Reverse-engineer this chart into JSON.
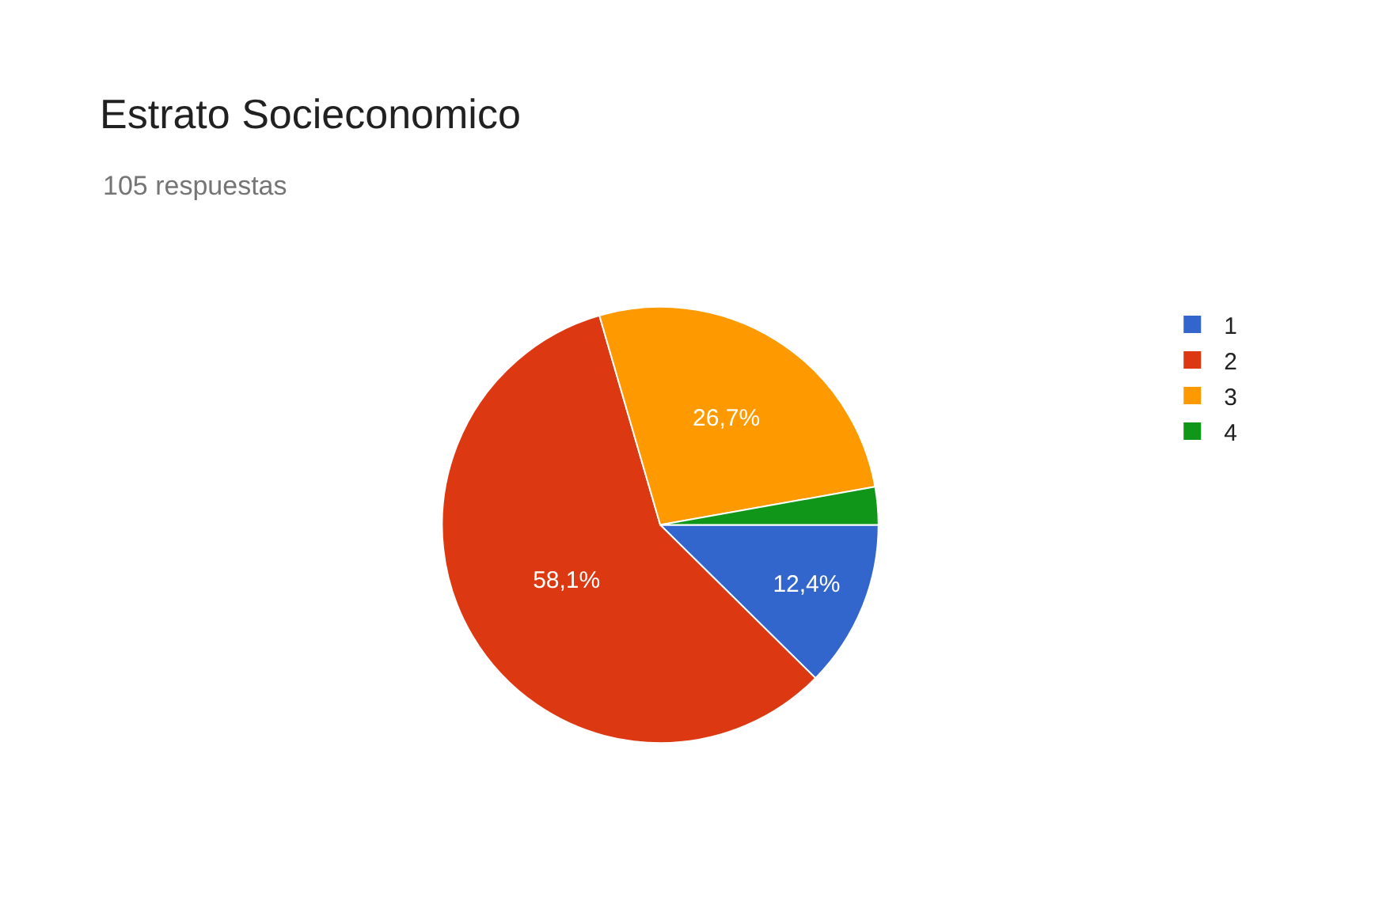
{
  "chart_data": {
    "type": "pie",
    "title": "Estrato Socieconomico",
    "subtitle": "105 respuestas",
    "categories": [
      "1",
      "2",
      "3",
      "4"
    ],
    "values": [
      12.4,
      58.1,
      26.7,
      2.8
    ],
    "value_labels": [
      "12,4%",
      "58,1%",
      "26,7%",
      null
    ],
    "colors": [
      "#3366cc",
      "#dc3912",
      "#ff9900",
      "#109618"
    ],
    "legend": "top right"
  }
}
